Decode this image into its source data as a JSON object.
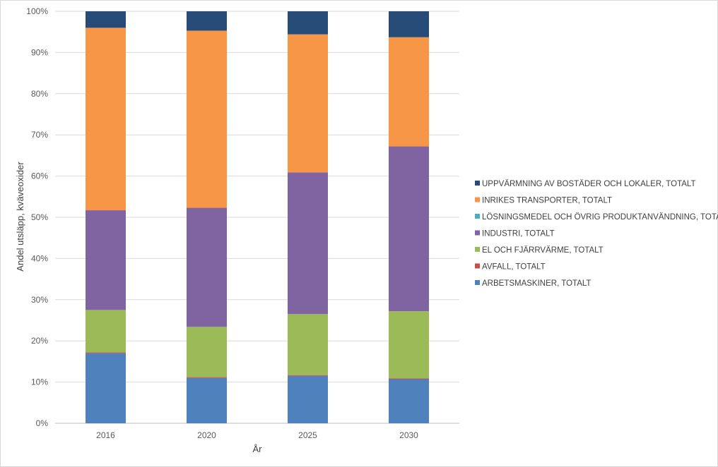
{
  "chart_data": {
    "type": "bar",
    "stacked": true,
    "percent": true,
    "title": "",
    "xlabel": "År",
    "ylabel": "Andel utsläpp, kväveoxider",
    "ylim": [
      0,
      100
    ],
    "yticks": [
      "0%",
      "10%",
      "20%",
      "30%",
      "40%",
      "50%",
      "60%",
      "70%",
      "80%",
      "90%",
      "100%"
    ],
    "categories": [
      "2016",
      "2020",
      "2025",
      "2030"
    ],
    "grid": true,
    "legend_position": "right",
    "series": [
      {
        "name": "ARBETSMASKINER, TOTALT",
        "color": "#4f81bd",
        "values": [
          17.0,
          11.0,
          11.5,
          10.7
        ]
      },
      {
        "name": "AVFALL, TOTALT",
        "color": "#c0504d",
        "values": [
          0.2,
          0.2,
          0.2,
          0.2
        ]
      },
      {
        "name": "EL OCH FJÄRRVÄRME, TOTALT",
        "color": "#9bbb59",
        "values": [
          10.3,
          12.2,
          14.8,
          16.3
        ]
      },
      {
        "name": "INDUSTRI, TOTALT",
        "color": "#8064a2",
        "values": [
          24.2,
          28.9,
          34.4,
          40.0
        ]
      },
      {
        "name": "LÖSNINGSMEDEL OCH ÖVRIG PRODUKTANVÄNDNING, TOTALT",
        "color": "#4bacc6",
        "values": [
          0.0,
          0.0,
          0.0,
          0.0
        ]
      },
      {
        "name": "INRIKES TRANSPORTER, TOTALT",
        "color": "#f79646",
        "values": [
          44.3,
          43.0,
          33.5,
          26.5
        ]
      },
      {
        "name": "UPPVÄRMNING AV BOSTÄDER OCH LOKALER, TOTALT",
        "color": "#264b77",
        "values": [
          4.0,
          4.7,
          5.6,
          6.3
        ]
      }
    ]
  }
}
